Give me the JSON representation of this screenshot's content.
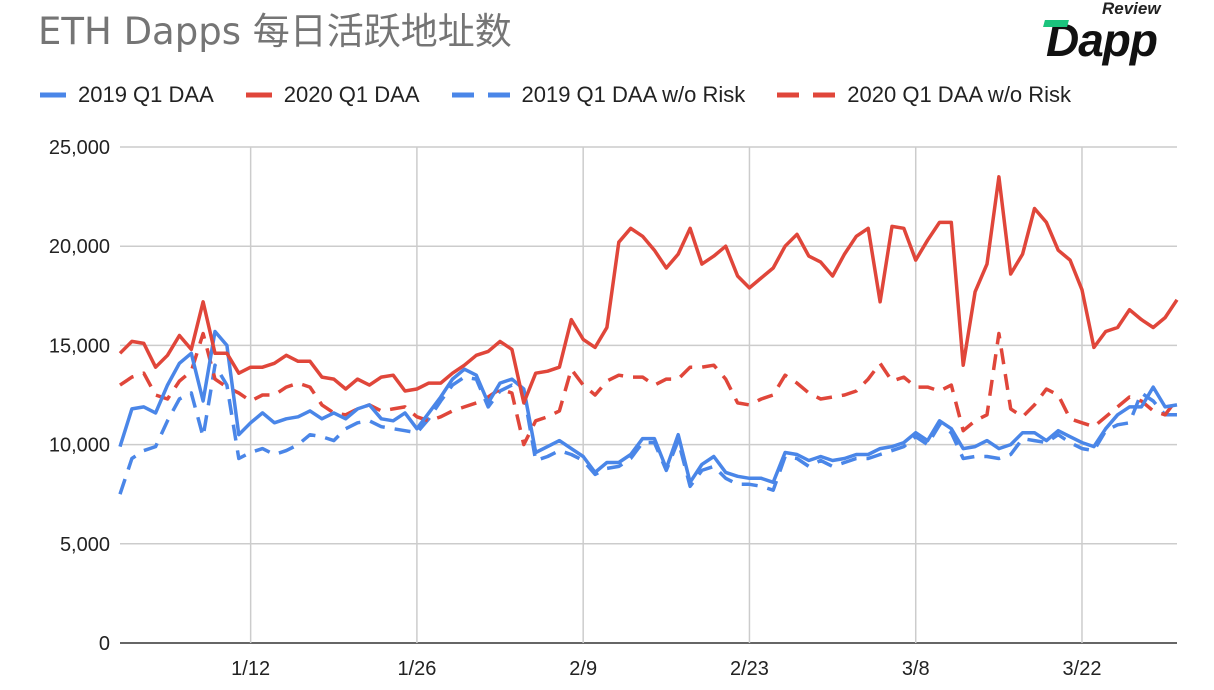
{
  "chart_data": {
    "type": "line",
    "title": "ETH Dapps 每日活跃地址数",
    "xlabel": "",
    "ylabel": "",
    "ylim": [
      0,
      25000
    ],
    "yticks": [
      "0",
      "5,000",
      "10,000",
      "15,000",
      "20,000",
      "25,000"
    ],
    "ytick_values": [
      0,
      5000,
      10000,
      15000,
      20000,
      25000
    ],
    "xticks": [
      "1/12",
      "1/26",
      "2/9",
      "2/23",
      "3/8",
      "3/22"
    ],
    "xtick_index": [
      11,
      25,
      39,
      53,
      67,
      81
    ],
    "grid": true,
    "legend_position": "top",
    "x": [
      "1/1",
      "1/2",
      "1/3",
      "1/4",
      "1/5",
      "1/6",
      "1/7",
      "1/8",
      "1/9",
      "1/10",
      "1/11",
      "1/12",
      "1/13",
      "1/14",
      "1/15",
      "1/16",
      "1/17",
      "1/18",
      "1/19",
      "1/20",
      "1/21",
      "1/22",
      "1/23",
      "1/24",
      "1/25",
      "1/26",
      "1/27",
      "1/28",
      "1/29",
      "1/30",
      "1/31",
      "2/1",
      "2/2",
      "2/3",
      "2/4",
      "2/5",
      "2/6",
      "2/7",
      "2/8",
      "2/9",
      "2/10",
      "2/11",
      "2/12",
      "2/13",
      "2/14",
      "2/15",
      "2/16",
      "2/17",
      "2/18",
      "2/19",
      "2/20",
      "2/21",
      "2/22",
      "2/23",
      "2/24",
      "2/25",
      "2/26",
      "2/27",
      "2/28",
      "3/1",
      "3/2",
      "3/3",
      "3/4",
      "3/5",
      "3/6",
      "3/7",
      "3/8",
      "3/9",
      "3/10",
      "3/11",
      "3/12",
      "3/13",
      "3/14",
      "3/15",
      "3/16",
      "3/17",
      "3/18",
      "3/19",
      "3/20",
      "3/21",
      "3/22",
      "3/23",
      "3/24",
      "3/25",
      "3/26",
      "3/27",
      "3/28",
      "3/29",
      "3/30",
      "3/31"
    ],
    "series": [
      {
        "name": "2019 Q1 DAA",
        "color": "#4a86e8",
        "dashed": false,
        "values": [
          9900,
          11800,
          11900,
          11600,
          13000,
          14100,
          14600,
          12200,
          15700,
          15000,
          10500,
          11100,
          11600,
          11100,
          11300,
          11400,
          11700,
          11300,
          11600,
          11300,
          11800,
          12000,
          11300,
          11200,
          11600,
          10800,
          11600,
          12400,
          13300,
          13800,
          13500,
          12100,
          13100,
          13300,
          12800,
          9600,
          9900,
          10200,
          9800,
          9400,
          8600,
          9100,
          9100,
          9500,
          10300,
          10300,
          8800,
          10500,
          8100,
          9000,
          9400,
          8600,
          8400,
          8300,
          8300,
          8100,
          9600,
          9500,
          9200,
          9400,
          9200,
          9300,
          9500,
          9500,
          9800,
          9900,
          10100,
          10600,
          10200,
          11200,
          10800,
          9800,
          9900,
          10200,
          9800,
          10000,
          10600,
          10600,
          10200,
          10700,
          10400,
          10100,
          9900,
          10800,
          11500,
          11900,
          11900,
          12900,
          11900,
          12000
        ]
      },
      {
        "name": "2020 Q1 DAA",
        "color": "#e0463a",
        "dashed": false,
        "values": [
          14600,
          15200,
          15100,
          13900,
          14500,
          15500,
          14800,
          17200,
          14600,
          14600,
          13600,
          13900,
          13900,
          14100,
          14500,
          14200,
          14200,
          13400,
          13300,
          12800,
          13300,
          13000,
          13400,
          13500,
          12700,
          12800,
          13100,
          13100,
          13600,
          14000,
          14500,
          14700,
          15200,
          14800,
          12100,
          13600,
          13700,
          13900,
          16300,
          15300,
          14900,
          15900,
          20200,
          20900,
          20500,
          19800,
          18900,
          19600,
          20900,
          19100,
          19500,
          20000,
          18500,
          17900,
          18400,
          18900,
          20000,
          20600,
          19500,
          19200,
          18500,
          19600,
          20500,
          20900,
          17200,
          21000,
          20900,
          19300,
          20300,
          21200,
          21200,
          14000,
          17700,
          19100,
          23500,
          18600,
          19600,
          21900,
          21200,
          19800,
          19300,
          17800,
          14900,
          15700,
          15900,
          16800,
          16300,
          15900,
          16400,
          17300
        ]
      },
      {
        "name": "2019 Q1 DAA w/o Risk",
        "color": "#4a86e8",
        "dashed": true,
        "values": [
          7500,
          9300,
          9700,
          9900,
          11200,
          12300,
          12600,
          10400,
          14000,
          13000,
          9300,
          9600,
          9800,
          9500,
          9700,
          10000,
          10500,
          10400,
          10200,
          10800,
          11100,
          11200,
          10900,
          10800,
          10700,
          10600,
          11300,
          12200,
          13000,
          13400,
          13300,
          11900,
          12700,
          13000,
          12600,
          9200,
          9400,
          9700,
          9500,
          9200,
          8500,
          8800,
          8900,
          9300,
          10100,
          10100,
          8700,
          10200,
          7900,
          8700,
          8900,
          8300,
          8000,
          8000,
          7900,
          7700,
          9400,
          9300,
          8900,
          9200,
          8900,
          9100,
          9300,
          9300,
          9500,
          9700,
          9900,
          10400,
          10000,
          11000,
          10600,
          9300,
          9400,
          9400,
          9300,
          9500,
          10300,
          10200,
          10100,
          10500,
          10100,
          9800,
          9700,
          10700,
          11000,
          11100,
          12600,
          12200,
          11500,
          11500
        ]
      },
      {
        "name": "2020 Q1 DAA w/o Risk",
        "color": "#e0463a",
        "dashed": true,
        "values": [
          13000,
          13400,
          13600,
          12500,
          12300,
          13200,
          13700,
          15600,
          13300,
          12900,
          12600,
          12200,
          12500,
          12500,
          12900,
          13100,
          12900,
          12000,
          11600,
          11500,
          11800,
          12000,
          11700,
          11800,
          11900,
          11400,
          11200,
          11400,
          11700,
          11900,
          12100,
          12400,
          12800,
          12600,
          10000,
          11200,
          11400,
          11700,
          13800,
          13000,
          12500,
          13200,
          13500,
          13400,
          13400,
          13000,
          13300,
          13300,
          13900,
          13900,
          14000,
          13300,
          12100,
          12000,
          12300,
          12500,
          13500,
          13100,
          12600,
          12300,
          12400,
          12500,
          12700,
          13300,
          14100,
          13200,
          13400,
          12900,
          12900,
          12700,
          13000,
          10700,
          11200,
          11500,
          15600,
          11800,
          11400,
          12000,
          12800,
          12500,
          11300,
          11100,
          10900,
          11400,
          11900,
          12400,
          12200,
          11700,
          11500,
          12300
        ]
      }
    ]
  },
  "logo": {
    "small": "Review",
    "main": "Dapp"
  }
}
